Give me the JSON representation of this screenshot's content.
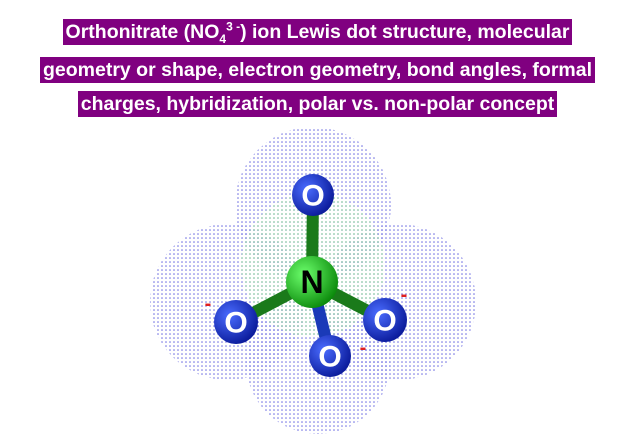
{
  "title": {
    "lines": [
      [
        "Orthonitrate (NO",
        "4",
        "3 -",
        ") ion Lewis dot structure, molecular"
      ],
      "geometry or shape, electron geometry, bond angles, formal",
      "charges, hybridization, polar vs. non-polar concept"
    ]
  },
  "molecule": {
    "atoms": [
      {
        "label": "O"
      },
      {
        "label": "N"
      },
      {
        "label": "O",
        "charge": "-"
      },
      {
        "label": "O",
        "charge": "-"
      },
      {
        "label": "O",
        "charge": "-"
      }
    ]
  }
}
